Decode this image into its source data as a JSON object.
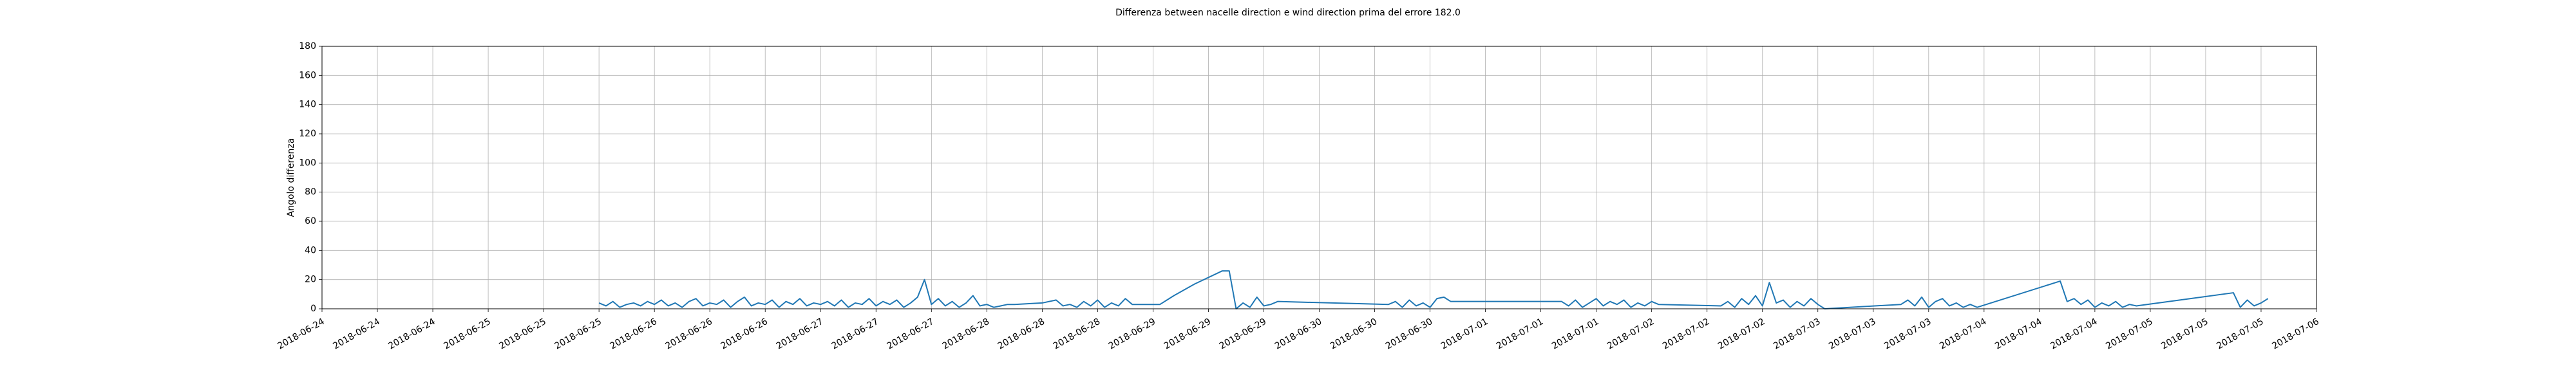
{
  "chart_data": {
    "type": "line",
    "title": "Differenza between nacelle direction e wind direction prima del errore 182.0",
    "ylabel": "Angolo differenza",
    "grid": true,
    "xlim": [
      "2018-06-24 00:00",
      "2018-07-06 00:00"
    ],
    "ylim": [
      0,
      180
    ],
    "yticks": [
      0,
      20,
      40,
      60,
      80,
      100,
      120,
      140,
      160,
      180
    ],
    "xticks": [
      {
        "value": "2018-06-24 00:00",
        "label": "2018-06-24"
      },
      {
        "value": "2018-06-24 08:00",
        "label": "2018-06-24"
      },
      {
        "value": "2018-06-24 16:00",
        "label": "2018-06-24"
      },
      {
        "value": "2018-06-25 00:00",
        "label": "2018-06-25"
      },
      {
        "value": "2018-06-25 08:00",
        "label": "2018-06-25"
      },
      {
        "value": "2018-06-25 16:00",
        "label": "2018-06-25"
      },
      {
        "value": "2018-06-26 00:00",
        "label": "2018-06-26"
      },
      {
        "value": "2018-06-26 08:00",
        "label": "2018-06-26"
      },
      {
        "value": "2018-06-26 16:00",
        "label": "2018-06-26"
      },
      {
        "value": "2018-06-27 00:00",
        "label": "2018-06-27"
      },
      {
        "value": "2018-06-27 08:00",
        "label": "2018-06-27"
      },
      {
        "value": "2018-06-27 16:00",
        "label": "2018-06-27"
      },
      {
        "value": "2018-06-28 00:00",
        "label": "2018-06-28"
      },
      {
        "value": "2018-06-28 08:00",
        "label": "2018-06-28"
      },
      {
        "value": "2018-06-28 16:00",
        "label": "2018-06-28"
      },
      {
        "value": "2018-06-29 00:00",
        "label": "2018-06-29"
      },
      {
        "value": "2018-06-29 08:00",
        "label": "2018-06-29"
      },
      {
        "value": "2018-06-29 16:00",
        "label": "2018-06-29"
      },
      {
        "value": "2018-06-30 00:00",
        "label": "2018-06-30"
      },
      {
        "value": "2018-06-30 08:00",
        "label": "2018-06-30"
      },
      {
        "value": "2018-06-30 16:00",
        "label": "2018-06-30"
      },
      {
        "value": "2018-07-01 00:00",
        "label": "2018-07-01"
      },
      {
        "value": "2018-07-01 08:00",
        "label": "2018-07-01"
      },
      {
        "value": "2018-07-01 16:00",
        "label": "2018-07-01"
      },
      {
        "value": "2018-07-02 00:00",
        "label": "2018-07-02"
      },
      {
        "value": "2018-07-02 08:00",
        "label": "2018-07-02"
      },
      {
        "value": "2018-07-02 16:00",
        "label": "2018-07-02"
      },
      {
        "value": "2018-07-03 00:00",
        "label": "2018-07-03"
      },
      {
        "value": "2018-07-03 08:00",
        "label": "2018-07-03"
      },
      {
        "value": "2018-07-03 16:00",
        "label": "2018-07-03"
      },
      {
        "value": "2018-07-04 00:00",
        "label": "2018-07-04"
      },
      {
        "value": "2018-07-04 08:00",
        "label": "2018-07-04"
      },
      {
        "value": "2018-07-04 16:00",
        "label": "2018-07-04"
      },
      {
        "value": "2018-07-05 00:00",
        "label": "2018-07-05"
      },
      {
        "value": "2018-07-05 08:00",
        "label": "2018-07-05"
      },
      {
        "value": "2018-07-05 16:00",
        "label": "2018-07-05"
      },
      {
        "value": "2018-07-06 00:00",
        "label": "2018-07-06"
      }
    ],
    "x": [
      "2018-06-25 16:00",
      "2018-06-25 17:00",
      "2018-06-25 18:00",
      "2018-06-25 19:00",
      "2018-06-25 20:00",
      "2018-06-25 21:00",
      "2018-06-25 22:00",
      "2018-06-25 23:00",
      "2018-06-26 00:00",
      "2018-06-26 01:00",
      "2018-06-26 02:00",
      "2018-06-26 03:00",
      "2018-06-26 04:00",
      "2018-06-26 05:00",
      "2018-06-26 06:00",
      "2018-06-26 07:00",
      "2018-06-26 08:00",
      "2018-06-26 09:00",
      "2018-06-26 10:00",
      "2018-06-26 11:00",
      "2018-06-26 12:00",
      "2018-06-26 13:00",
      "2018-06-26 14:00",
      "2018-06-26 15:00",
      "2018-06-26 16:00",
      "2018-06-26 17:00",
      "2018-06-26 18:00",
      "2018-06-26 19:00",
      "2018-06-26 20:00",
      "2018-06-26 21:00",
      "2018-06-26 22:00",
      "2018-06-26 23:00",
      "2018-06-27 00:00",
      "2018-06-27 01:00",
      "2018-06-27 02:00",
      "2018-06-27 03:00",
      "2018-06-27 04:00",
      "2018-06-27 05:00",
      "2018-06-27 06:00",
      "2018-06-27 07:00",
      "2018-06-27 08:00",
      "2018-06-27 09:00",
      "2018-06-27 10:00",
      "2018-06-27 11:00",
      "2018-06-27 12:00",
      "2018-06-27 13:00",
      "2018-06-27 14:00",
      "2018-06-27 15:00",
      "2018-06-27 16:00",
      "2018-06-27 17:00",
      "2018-06-27 18:00",
      "2018-06-27 19:00",
      "2018-06-27 20:00",
      "2018-06-27 21:00",
      "2018-06-27 22:00",
      "2018-06-27 23:00",
      "2018-06-28 00:00",
      "2018-06-28 01:00",
      "2018-06-28 02:00",
      "2018-06-28 03:00",
      "2018-06-28 04:00",
      "2018-06-28 08:00",
      "2018-06-28 10:00",
      "2018-06-28 11:00",
      "2018-06-28 12:00",
      "2018-06-28 13:00",
      "2018-06-28 14:00",
      "2018-06-28 15:00",
      "2018-06-28 16:00",
      "2018-06-28 17:00",
      "2018-06-28 18:00",
      "2018-06-28 19:00",
      "2018-06-28 20:00",
      "2018-06-28 21:00",
      "2018-06-28 22:00",
      "2018-06-29 01:00",
      "2018-06-29 03:00",
      "2018-06-29 06:00",
      "2018-06-29 10:00",
      "2018-06-29 11:00",
      "2018-06-29 12:00",
      "2018-06-29 13:00",
      "2018-06-29 14:00",
      "2018-06-29 15:00",
      "2018-06-29 16:00",
      "2018-06-29 17:00",
      "2018-06-29 18:00",
      "2018-06-30 10:00",
      "2018-06-30 11:00",
      "2018-06-30 12:00",
      "2018-06-30 13:00",
      "2018-06-30 14:00",
      "2018-06-30 15:00",
      "2018-06-30 16:00",
      "2018-06-30 17:00",
      "2018-06-30 18:00",
      "2018-06-30 19:00",
      "2018-07-01 11:00",
      "2018-07-01 12:00",
      "2018-07-01 13:00",
      "2018-07-01 14:00",
      "2018-07-01 15:00",
      "2018-07-01 16:00",
      "2018-07-01 17:00",
      "2018-07-01 18:00",
      "2018-07-01 19:00",
      "2018-07-01 20:00",
      "2018-07-01 21:00",
      "2018-07-01 22:00",
      "2018-07-01 23:00",
      "2018-07-02 00:00",
      "2018-07-02 01:00",
      "2018-07-02 10:00",
      "2018-07-02 11:00",
      "2018-07-02 12:00",
      "2018-07-02 13:00",
      "2018-07-02 14:00",
      "2018-07-02 15:00",
      "2018-07-02 16:00",
      "2018-07-02 17:00",
      "2018-07-02 18:00",
      "2018-07-02 19:00",
      "2018-07-02 20:00",
      "2018-07-02 21:00",
      "2018-07-02 22:00",
      "2018-07-02 23:00",
      "2018-07-03 00:00",
      "2018-07-03 01:00",
      "2018-07-03 12:00",
      "2018-07-03 13:00",
      "2018-07-03 14:00",
      "2018-07-03 15:00",
      "2018-07-03 16:00",
      "2018-07-03 17:00",
      "2018-07-03 18:00",
      "2018-07-03 19:00",
      "2018-07-03 20:00",
      "2018-07-03 21:00",
      "2018-07-03 22:00",
      "2018-07-03 23:00",
      "2018-07-04 11:00",
      "2018-07-04 12:00",
      "2018-07-04 13:00",
      "2018-07-04 14:00",
      "2018-07-04 15:00",
      "2018-07-04 16:00",
      "2018-07-04 17:00",
      "2018-07-04 18:00",
      "2018-07-04 19:00",
      "2018-07-04 20:00",
      "2018-07-04 21:00",
      "2018-07-04 22:00",
      "2018-07-05 12:00",
      "2018-07-05 13:00",
      "2018-07-05 14:00",
      "2018-07-05 15:00",
      "2018-07-05 16:00",
      "2018-07-05 17:00"
    ],
    "series": [
      {
        "name": "Angolo differenza",
        "color": "#1f77b4",
        "values": [
          4,
          2,
          5,
          1,
          3,
          4,
          2,
          5,
          3,
          6,
          2,
          4,
          1,
          5,
          7,
          2,
          4,
          3,
          6,
          1,
          5,
          8,
          2,
          4,
          3,
          6,
          1,
          5,
          3,
          7,
          2,
          4,
          3,
          5,
          2,
          6,
          1,
          4,
          3,
          7,
          2,
          5,
          3,
          6,
          1,
          4,
          8,
          20,
          3,
          7,
          2,
          5,
          1,
          4,
          9,
          2,
          3,
          1,
          2,
          3,
          3,
          4,
          6,
          2,
          3,
          1,
          5,
          2,
          6,
          1,
          4,
          2,
          7,
          3,
          3,
          3,
          9,
          17,
          26,
          26,
          0,
          4,
          1,
          8,
          2,
          3,
          5,
          3,
          5,
          1,
          6,
          2,
          4,
          1,
          7,
          8,
          5,
          5,
          2,
          6,
          1,
          4,
          7,
          2,
          5,
          3,
          6,
          1,
          4,
          2,
          5,
          3,
          2,
          5,
          1,
          7,
          3,
          9,
          2,
          18,
          4,
          6,
          1,
          5,
          2,
          7,
          3,
          0,
          3,
          6,
          2,
          8,
          1,
          5,
          7,
          2,
          4,
          1,
          3,
          1,
          19,
          5,
          7,
          3,
          6,
          1,
          4,
          2,
          5,
          1,
          3,
          2,
          11,
          1,
          6,
          2,
          4,
          7
        ]
      }
    ]
  }
}
